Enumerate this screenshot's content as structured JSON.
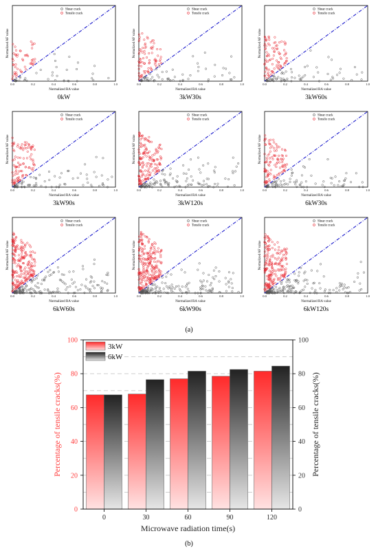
{
  "figure": {
    "panel_a_label": "(a)",
    "panel_b_label": "(b)"
  },
  "scatter_common": {
    "xlabel": "Normalized RA value",
    "ylabel": "Normalized AF value",
    "ticks": [
      "0.0",
      "0.2",
      "0.4",
      "0.6",
      "0.8",
      "1.0"
    ],
    "legend": [
      "Shear crack",
      "Tensile crack"
    ],
    "colors": {
      "shear": "#555555",
      "tensile": "#e8202a",
      "diagonal": "#1a1acc"
    }
  },
  "bar_common": {
    "xlabel": "Microwave radiation time(s)",
    "ylabel_left": "Percentage of tensile cracks(%)",
    "ylabel_right": "Percentage of tensile cracks(%)",
    "yticks": [
      "0",
      "20",
      "40",
      "60",
      "80",
      "100"
    ],
    "left_axis_color": "#ff3b3b",
    "colors": {
      "3kW": "#ff2a2a",
      "6kW": "#222222"
    }
  },
  "chart_data": [
    {
      "type": "scatter",
      "title": "0kW",
      "density": 0.55,
      "xlim": [
        0,
        1
      ],
      "ylim": [
        0,
        1
      ]
    },
    {
      "type": "scatter",
      "title": "3kW30s",
      "density": 0.9,
      "xlim": [
        0,
        1
      ],
      "ylim": [
        0,
        1
      ]
    },
    {
      "type": "scatter",
      "title": "3kW60s",
      "density": 1.0,
      "xlim": [
        0,
        1
      ],
      "ylim": [
        0,
        1
      ]
    },
    {
      "type": "scatter",
      "title": "3kW90s",
      "density": 1.1,
      "xlim": [
        0,
        1
      ],
      "ylim": [
        0,
        1
      ]
    },
    {
      "type": "scatter",
      "title": "3kW120s",
      "density": 1.7,
      "xlim": [
        0,
        1
      ],
      "ylim": [
        0,
        1
      ]
    },
    {
      "type": "scatter",
      "title": "6kW30s",
      "density": 1.2,
      "xlim": [
        0,
        1
      ],
      "ylim": [
        0,
        1
      ]
    },
    {
      "type": "scatter",
      "title": "6kW60s",
      "density": 2.4,
      "xlim": [
        0,
        1
      ],
      "ylim": [
        0,
        1
      ]
    },
    {
      "type": "scatter",
      "title": "6kW90s",
      "density": 2.6,
      "xlim": [
        0,
        1
      ],
      "ylim": [
        0,
        1
      ]
    },
    {
      "type": "scatter",
      "title": "6kW120s",
      "density": 2.2,
      "xlim": [
        0,
        1
      ],
      "ylim": [
        0,
        1
      ]
    },
    {
      "type": "bar",
      "categories": [
        "0",
        "30",
        "60",
        "90",
        "120"
      ],
      "series": [
        {
          "name": "3kW",
          "values": [
            67.5,
            68,
            77,
            78.5,
            81.5
          ]
        },
        {
          "name": "6kW",
          "values": [
            67.5,
            76.5,
            81.5,
            82.5,
            84.5
          ]
        }
      ],
      "xlabel": "Microwave radiation time(s)",
      "ylabel": "Percentage of tensile cracks(%)",
      "ylim": [
        0,
        100
      ],
      "grid": true,
      "legend_position": "top-left"
    }
  ]
}
